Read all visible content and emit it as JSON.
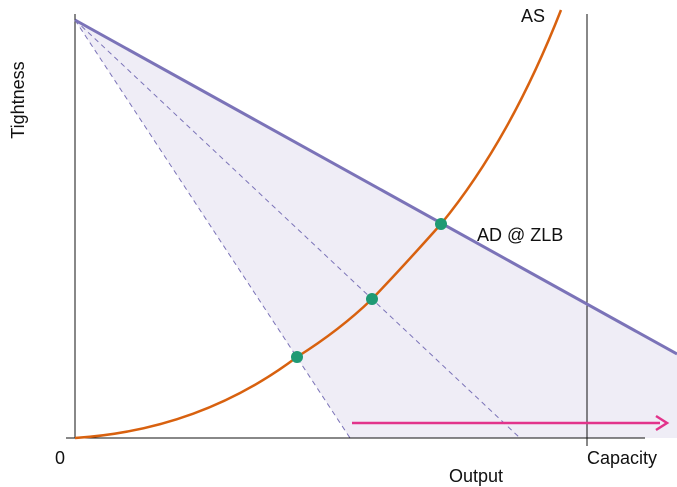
{
  "axes": {
    "y_label": "Tightness",
    "x_label": "Output",
    "origin_label": "0",
    "capacity_label": "Capacity"
  },
  "curves": {
    "as_label": "AS",
    "ad_label": "AD @ ZLB"
  },
  "colors": {
    "axis": "#111111",
    "ad_line": "#7b73b8",
    "ad_dashed": "#7b73b8",
    "region_fill": "#efedf6",
    "as_curve": "#d8610f",
    "equilibrium_dot": "#1f9a74",
    "arrow": "#e2338b"
  },
  "icons": {
    "arrow": "right-arrow-icon",
    "dot": "equilibrium-dot"
  }
}
